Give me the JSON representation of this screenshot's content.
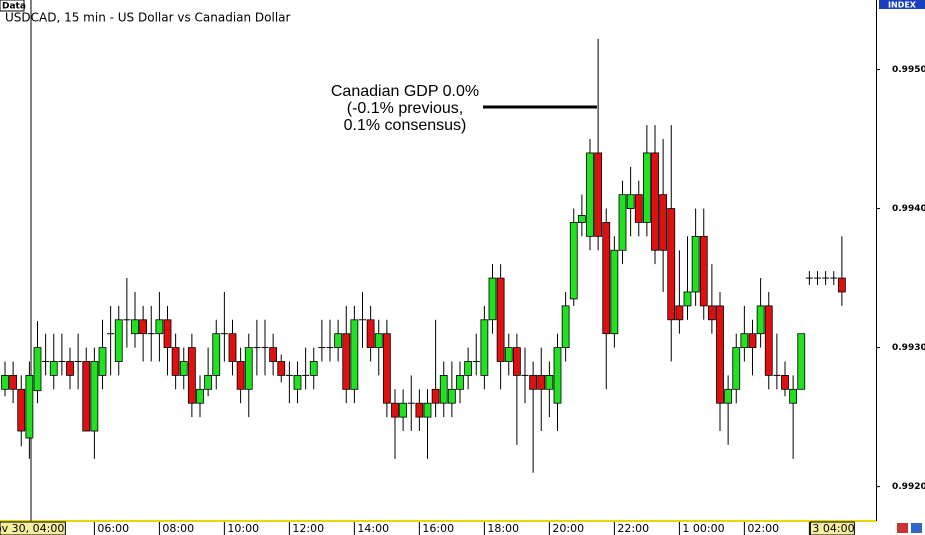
{
  "chart_data": {
    "type": "candlestick",
    "panel_label": "Data",
    "axis_label": "INDEX",
    "title": "USDCAD, 15 min - US Dollar vs Canadian Dollar",
    "annotation": [
      "Canadian GDP 0.0%",
      "(-0.1% previous,",
      "0.1% consensus)"
    ],
    "categories": [
      null,
      null,
      null,
      "ov 30, 04:00",
      null,
      null,
      null,
      null,
      null,
      null,
      null,
      "06:00",
      null,
      null,
      null,
      null,
      null,
      null,
      null,
      "08:00",
      null,
      null,
      null,
      null,
      null,
      null,
      null,
      "10:00",
      null,
      null,
      null,
      null,
      null,
      null,
      null,
      "12:00",
      null,
      null,
      null,
      null,
      null,
      null,
      null,
      "14:00",
      null,
      null,
      null,
      null,
      null,
      null,
      null,
      "16:00",
      null,
      null,
      null,
      null,
      null,
      null,
      null,
      "18:00",
      null,
      null,
      null,
      null,
      null,
      null,
      null,
      "20:00",
      null,
      null,
      null,
      null,
      null,
      null,
      null,
      "22:00",
      null,
      null,
      null,
      null,
      null,
      null,
      null,
      "1 00:00",
      null,
      null,
      null,
      null,
      null,
      null,
      null,
      "02:00",
      null,
      null,
      null,
      null,
      null,
      null,
      null,
      "3 04:00",
      null,
      null,
      null,
      null
    ],
    "open": [
      0.9927,
      0.9928,
      0.9927,
      0.99235,
      0.99269,
      0.9929,
      0.9928,
      0.9929,
      0.9929,
      0.9929,
      0.9929,
      0.9924,
      0.9928,
      0.9931,
      0.9929,
      0.9932,
      0.9931,
      0.9932,
      0.9931,
      0.9931,
      0.9932,
      0.993,
      0.9928,
      0.993,
      0.9926,
      0.9927,
      0.9928,
      0.9931,
      0.9931,
      0.9929,
      0.9927,
      0.993,
      0.993,
      0.993,
      0.9929,
      0.9928,
      0.9927,
      0.9928,
      0.9928,
      0.993,
      0.993,
      0.993,
      0.9931,
      0.9927,
      0.9932,
      0.9932,
      0.993,
      0.9931,
      0.9926,
      0.9925,
      0.9926,
      0.9926,
      0.9925,
      0.9927,
      0.9926,
      0.9926,
      0.9927,
      0.9928,
      0.9929,
      0.9928,
      0.9932,
      0.9935,
      0.9929,
      0.993,
      0.9928,
      0.9928,
      0.9928,
      0.9927,
      0.9926,
      0.993,
      0.99335,
      0.9939,
      0.9938,
      0.9944,
      0.9939,
      0.9931,
      0.9937,
      0.994,
      0.9941,
      0.9939,
      0.9944,
      0.9941,
      0.994,
      0.9933,
      0.9933,
      0.9934,
      0.9938,
      0.9933,
      0.9933,
      0.9926,
      0.9927,
      0.993,
      0.9931,
      0.9931,
      0.9933,
      0.9928,
      0.9928,
      0.9926,
      0.9927,
      0.9935,
      0.9935,
      0.9935,
      0.9935,
      0.9935
    ],
    "high": [
      0.9929,
      0.9929,
      0.9928,
      0.9929,
      0.99319,
      0.9931,
      0.9931,
      0.9931,
      0.993,
      0.9931,
      0.993,
      0.993,
      0.9932,
      0.9933,
      0.9933,
      0.9935,
      0.9934,
      0.9933,
      0.9933,
      0.9934,
      0.9933,
      0.9931,
      0.993,
      0.9931,
      0.9928,
      0.993,
      0.9932,
      0.9934,
      0.9932,
      0.993,
      0.9931,
      0.9932,
      0.9932,
      0.9931,
      0.99295,
      0.9929,
      0.9929,
      0.993,
      0.993,
      0.9932,
      0.9932,
      0.9932,
      0.9933,
      0.9933,
      0.9934,
      0.9933,
      0.9932,
      0.9932,
      0.9927,
      0.9927,
      0.9928,
      0.9927,
      0.9927,
      0.9932,
      0.9929,
      0.9929,
      0.9929,
      0.993,
      0.9931,
      0.9933,
      0.9936,
      0.9936,
      0.9931,
      0.9931,
      0.993,
      0.9929,
      0.993,
      0.9929,
      0.9931,
      0.9934,
      0.994,
      0.9941,
      0.9945,
      0.99522,
      0.994,
      0.9938,
      0.9942,
      0.9943,
      0.9942,
      0.9946,
      0.9946,
      0.9945,
      0.9946,
      0.9937,
      0.9938,
      0.994,
      0.994,
      0.9936,
      0.9934,
      0.9928,
      0.9931,
      0.9933,
      0.9932,
      0.9935,
      0.9934,
      0.9931,
      0.9929,
      0.9928,
      0.9931,
      0.99355,
      0.99355,
      0.99355,
      0.99355,
      0.9938
    ],
    "low": [
      0.99265,
      0.9926,
      0.99229,
      0.9922,
      0.9926,
      0.9928,
      0.9927,
      0.9928,
      0.9927,
      0.9927,
      0.9924,
      0.9922,
      0.9927,
      0.9928,
      0.9928,
      0.993,
      0.993,
      0.9929,
      0.9929,
      0.9929,
      0.9928,
      0.9927,
      0.9927,
      0.9925,
      0.9925,
      0.99265,
      0.9927,
      0.9929,
      0.9928,
      0.9926,
      0.9925,
      0.9928,
      0.9928,
      0.9928,
      0.99275,
      0.9926,
      0.9926,
      0.9927,
      0.9927,
      0.9929,
      0.9929,
      0.9929,
      0.9926,
      0.9926,
      0.993,
      0.9929,
      0.9928,
      0.9925,
      0.9922,
      0.9924,
      0.9924,
      0.9924,
      0.9922,
      0.9925,
      0.9925,
      0.9925,
      0.9926,
      0.9927,
      0.9928,
      0.9927,
      0.9931,
      0.9927,
      0.9928,
      0.9923,
      0.9926,
      0.9921,
      0.9924,
      0.9925,
      0.9924,
      0.9929,
      0.9933,
      0.9938,
      0.9937,
      0.9937,
      0.9927,
      0.993,
      0.9936,
      0.9938,
      0.9938,
      0.9938,
      0.9936,
      0.9934,
      0.9929,
      0.9931,
      0.9932,
      0.9933,
      0.9932,
      0.9931,
      0.9924,
      0.9923,
      0.9926,
      0.9929,
      0.9928,
      0.993,
      0.9927,
      0.9927,
      0.99265,
      0.9922,
      0.9927,
      0.99345,
      0.99345,
      0.99345,
      0.99345,
      0.9933
    ],
    "close": [
      0.9928,
      0.9927,
      0.9924,
      0.9928,
      0.993,
      0.9929,
      0.9929,
      0.9929,
      0.9928,
      0.9929,
      0.9924,
      0.9929,
      0.993,
      0.9931,
      0.9932,
      0.9932,
      0.9932,
      0.9931,
      0.9931,
      0.9932,
      0.993,
      0.9928,
      0.9929,
      0.9926,
      0.9927,
      0.9928,
      0.9931,
      0.9931,
      0.9929,
      0.9927,
      0.993,
      0.993,
      0.993,
      0.9929,
      0.9928,
      0.9928,
      0.9928,
      0.9928,
      0.9929,
      0.993,
      0.993,
      0.9931,
      0.9927,
      0.9932,
      0.9932,
      0.993,
      0.9931,
      0.9926,
      0.9925,
      0.9926,
      0.9926,
      0.9925,
      0.9926,
      0.9926,
      0.9928,
      0.9927,
      0.9928,
      0.9929,
      0.9929,
      0.9932,
      0.9935,
      0.9929,
      0.993,
      0.9928,
      0.9928,
      0.9927,
      0.9927,
      0.9928,
      0.993,
      0.9933,
      0.9939,
      0.99395,
      0.9944,
      0.9938,
      0.9931,
      0.9937,
      0.9941,
      0.9941,
      0.9939,
      0.9944,
      0.9937,
      0.9937,
      0.9932,
      0.9932,
      0.9934,
      0.9938,
      0.9933,
      0.9932,
      0.9926,
      0.9927,
      0.993,
      0.9931,
      0.993,
      0.9933,
      0.9928,
      0.9928,
      0.9927,
      0.9927,
      0.9931,
      0.9935,
      0.9935,
      0.9935,
      0.9935,
      0.9934
    ],
    "up_color": "#22e022",
    "down_color": "#e01010",
    "ylim": [
      0.99176,
      0.9955
    ],
    "yticks": [
      {
        "value": 0.992,
        "label": "0.9920"
      },
      {
        "value": 0.993,
        "label": "0.9930"
      },
      {
        "value": 0.994,
        "label": "0.9940"
      },
      {
        "value": 0.995,
        "label": "0.9950"
      }
    ]
  }
}
